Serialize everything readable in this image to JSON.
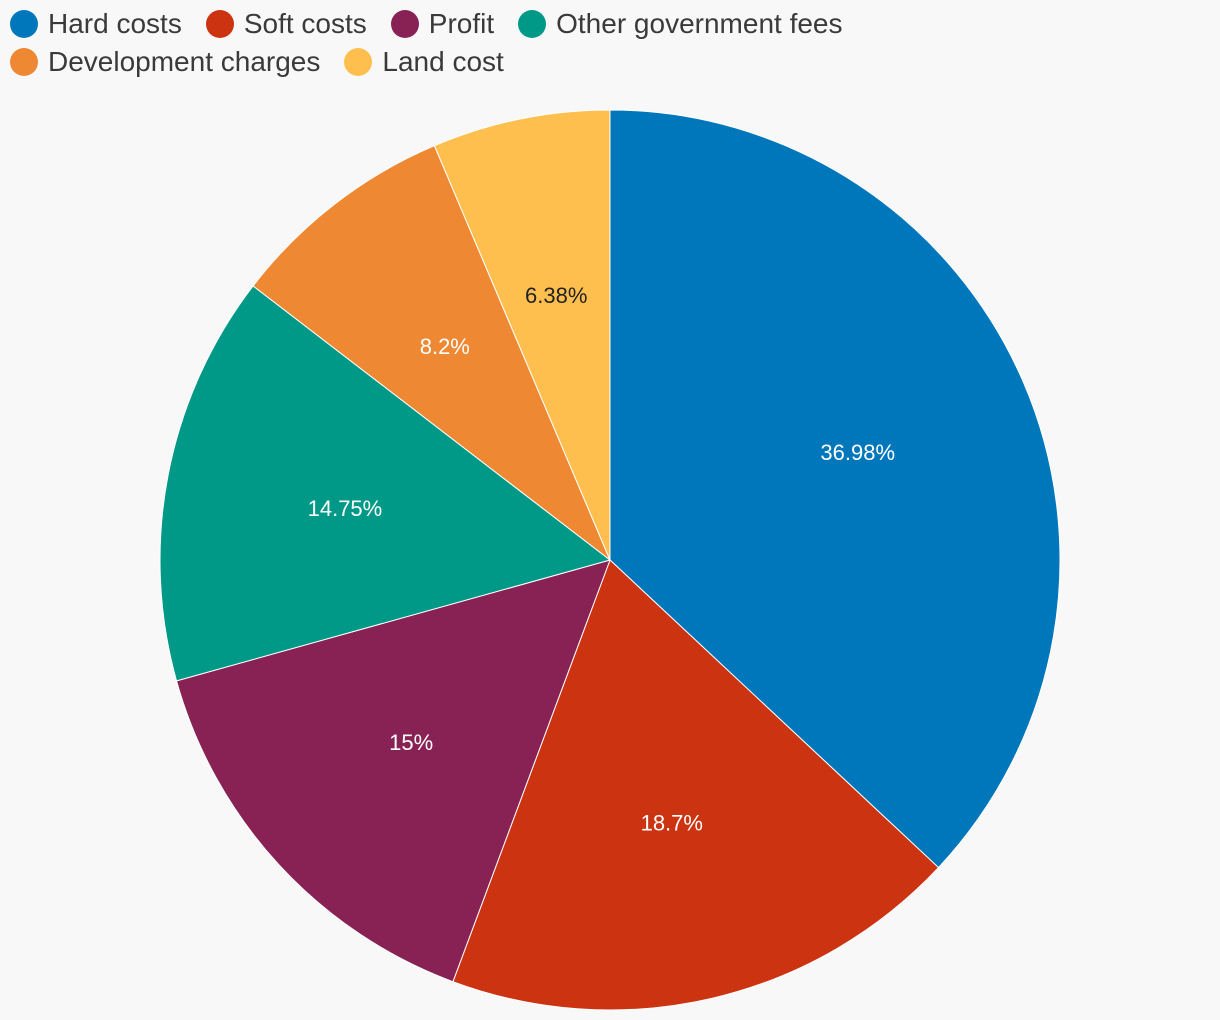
{
  "chart_data": {
    "type": "pie",
    "title": "",
    "legend_position": "top-left",
    "start_angle": "12 o'clock, clockwise",
    "slices": [
      {
        "label": "Hard costs",
        "value": 36.98,
        "display": "36.98%",
        "color": "#0077BB",
        "label_color": "#ffffff"
      },
      {
        "label": "Soft costs",
        "value": 18.7,
        "display": "18.7%",
        "color": "#CC3311",
        "label_color": "#ffffff"
      },
      {
        "label": "Profit",
        "value": 15,
        "display": "15%",
        "color": "#882255",
        "label_color": "#ffffff"
      },
      {
        "label": "Other government fees",
        "value": 14.75,
        "display": "14.75%",
        "color": "#009988",
        "label_color": "#ffffff"
      },
      {
        "label": "Development charges",
        "value": 8.2,
        "display": "8.2%",
        "color": "#EE8833",
        "label_color": "#ffffff"
      },
      {
        "label": "Land cost",
        "value": 6.38,
        "display": "6.38%",
        "color": "#FFBF4F",
        "label_color": "#222222"
      }
    ]
  }
}
